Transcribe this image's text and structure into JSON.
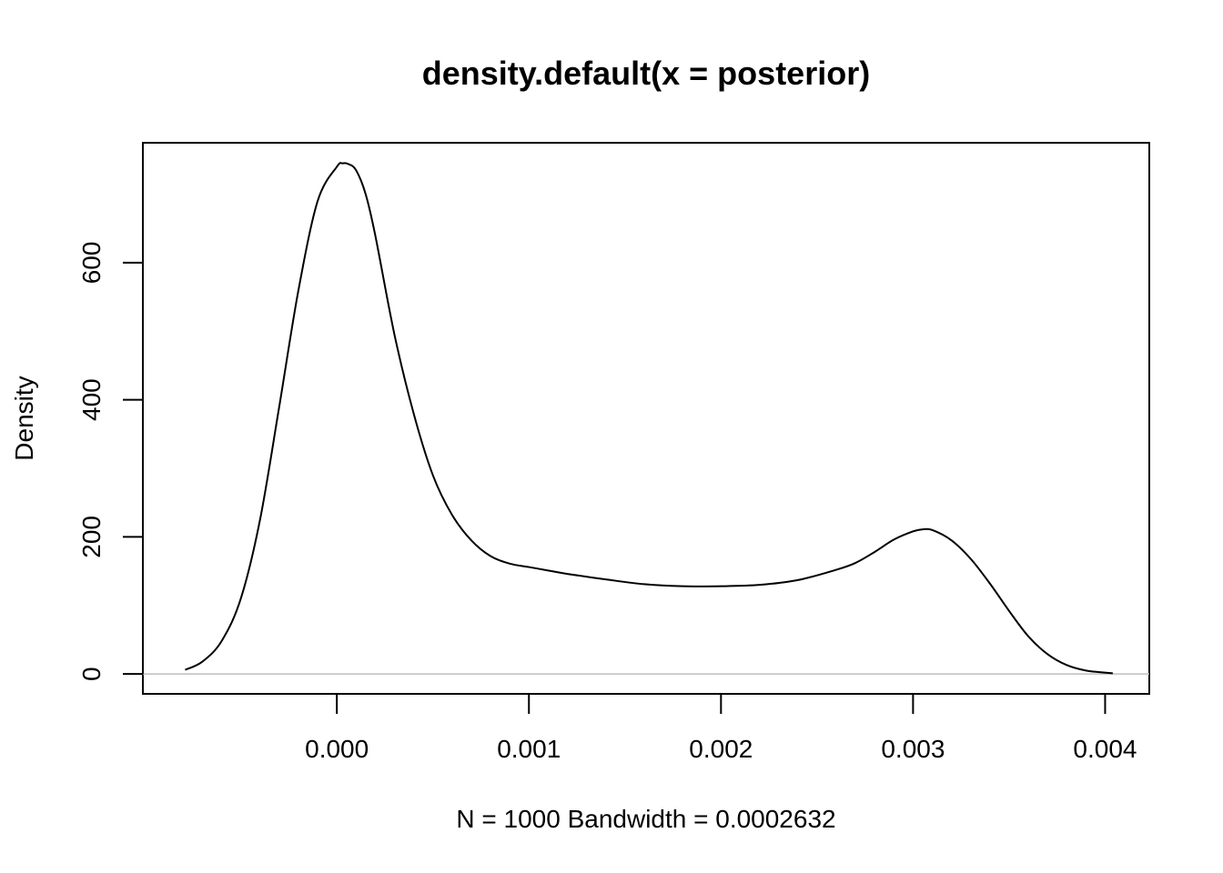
{
  "chart_data": {
    "type": "line",
    "title": "density.default(x = posterior)",
    "xlabel": "N = 1000   Bandwidth = 0.0002632",
    "ylabel": "Density",
    "xlim": [
      -0.00101,
      0.00423
    ],
    "ylim": [
      -29,
      775
    ],
    "x_ticks": [
      0.0,
      0.001,
      0.002,
      0.003,
      0.004
    ],
    "x_tick_labels": [
      "0.000",
      "0.001",
      "0.002",
      "0.003",
      "0.004"
    ],
    "y_ticks": [
      0,
      200,
      400,
      600
    ],
    "y_tick_labels": [
      "0",
      "200",
      "400",
      "600"
    ],
    "zero_line": true,
    "colors": {
      "curve": "#000000",
      "zero_line": "#bebebe",
      "frame": "#000000"
    },
    "series": [
      {
        "x": [
          -0.00079,
          -0.0007,
          -0.0006,
          -0.0005,
          -0.0004,
          -0.0003,
          -0.0002,
          -0.0001,
          0.0,
          3e-05,
          6e-05,
          0.0001,
          0.00015,
          0.0002,
          0.0003,
          0.0004,
          0.0005,
          0.0006,
          0.0007,
          0.0008,
          0.0009,
          0.001,
          0.0011,
          0.0012,
          0.0014,
          0.0016,
          0.0018,
          0.002,
          0.0022,
          0.0024,
          0.0026,
          0.0027,
          0.0028,
          0.0029,
          0.003,
          0.00305,
          0.0031,
          0.0032,
          0.0033,
          0.0034,
          0.0035,
          0.0036,
          0.0037,
          0.0038,
          0.0039,
          0.004,
          0.00404
        ],
        "y": [
          6,
          18,
          48,
          110,
          225,
          390,
          560,
          690,
          740,
          745,
          744,
          735,
          700,
          640,
          495,
          380,
          290,
          232,
          195,
          172,
          161,
          156,
          151,
          146,
          138,
          131,
          128,
          128,
          130,
          137,
          152,
          162,
          178,
          196,
          208,
          211,
          210,
          195,
          168,
          132,
          92,
          55,
          29,
          13,
          5,
          2,
          1
        ]
      }
    ]
  }
}
